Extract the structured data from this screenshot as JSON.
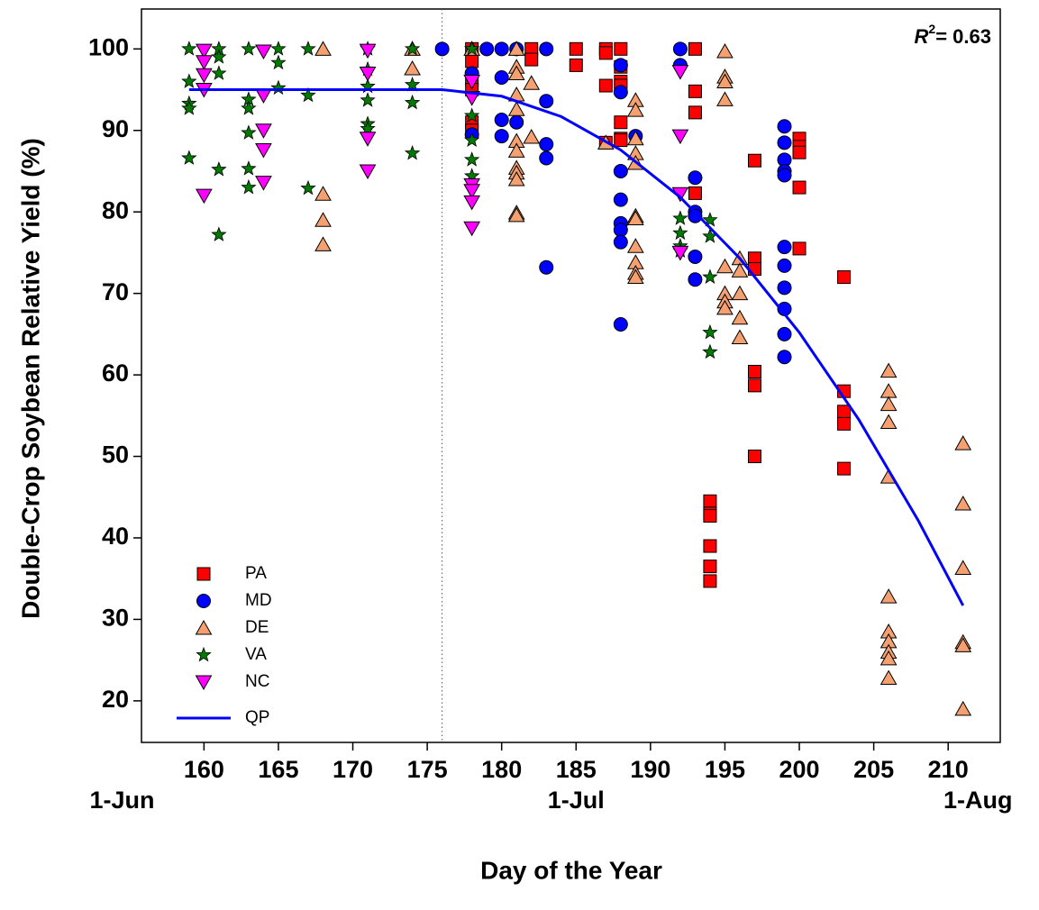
{
  "chart_data": {
    "type": "scatter",
    "xlabel": "Day of the Year",
    "ylabel": "Double-Crop Soybean Relative Yield (%)",
    "annotation": {
      "prefix": "R",
      "superscript": "2",
      "text": "= 0.63"
    },
    "xlim": [
      155.8,
      213.5
    ],
    "ylim": [
      14.9,
      104.9
    ],
    "xticks": [
      160,
      165,
      170,
      175,
      180,
      185,
      190,
      195,
      200,
      205,
      210
    ],
    "yticks": [
      20,
      30,
      40,
      50,
      60,
      70,
      80,
      90,
      100
    ],
    "date_labels": [
      {
        "value": 154.5,
        "label": "1-Jun"
      },
      {
        "value": 185,
        "label": "1-Jul"
      },
      {
        "value": 212,
        "label": "1-Aug"
      }
    ],
    "vline": 176,
    "legend": "lower left",
    "series": [
      {
        "name": "PA",
        "marker": "square",
        "color": "#ff0000",
        "x": [
          178,
          178,
          178,
          178,
          178,
          178,
          182,
          182,
          185,
          185,
          187,
          187,
          187,
          187,
          188,
          188,
          188,
          188,
          188,
          188,
          188,
          193,
          193,
          193,
          193,
          194,
          194,
          194,
          194,
          194,
          194,
          197,
          197,
          197,
          197,
          197,
          197,
          200,
          200,
          200,
          200,
          200,
          203,
          203,
          203,
          203,
          203
        ],
        "values": [
          100,
          98.5,
          96.3,
          95,
          91,
          90,
          100,
          98.7,
          100,
          98,
          100,
          99.5,
          95.5,
          88.5,
          100,
          97.8,
          96,
          95.5,
          91,
          89,
          88.8,
          100,
          94.8,
          92.2,
          82.3,
          44.5,
          43,
          42.7,
          39,
          36.5,
          34.7,
          86.3,
          74.3,
          73,
          60.4,
          58.7,
          50,
          89,
          88,
          87.3,
          83,
          75.5,
          72,
          58,
          55.5,
          54,
          48.5
        ]
      },
      {
        "name": "MD",
        "marker": "circle",
        "color": "#0000ff",
        "x": [
          176,
          178,
          178,
          179,
          180,
          180,
          180,
          180,
          181,
          181,
          183,
          183,
          183,
          183,
          183,
          188,
          188,
          188,
          188,
          188,
          188,
          188,
          188,
          189,
          192,
          192,
          193,
          193,
          193,
          193,
          193,
          199,
          199,
          199,
          199,
          199,
          199,
          199,
          199,
          199,
          199,
          199
        ],
        "values": [
          100,
          97,
          89.5,
          100,
          100,
          96.5,
          91.3,
          89.3,
          100,
          91,
          100,
          93.6,
          88.3,
          86.6,
          73.2,
          98,
          94.7,
          85,
          81.5,
          78.6,
          77.8,
          76.3,
          66.2,
          89.3,
          100,
          98,
          84.2,
          80,
          79.5,
          74.5,
          71.7,
          90.5,
          88.5,
          86.4,
          85,
          84.5,
          75.7,
          73.4,
          70.7,
          68.1,
          65,
          62.2
        ]
      },
      {
        "name": "DE",
        "marker": "triangle",
        "color": "#f4a070",
        "x": [
          168,
          168,
          168,
          168,
          174,
          174,
          178,
          181,
          181,
          181,
          181,
          181,
          181,
          181,
          181,
          181,
          181,
          181,
          181,
          182,
          182,
          187,
          189,
          189,
          189,
          189,
          189,
          189,
          189,
          189,
          189,
          189,
          189,
          195,
          195,
          195,
          195,
          195,
          195,
          195,
          195,
          196,
          196,
          196,
          196,
          196,
          206,
          206,
          206,
          206,
          206,
          206,
          206,
          206,
          206,
          206,
          206,
          211,
          211,
          211,
          211,
          211,
          211
        ],
        "values": [
          100,
          82.2,
          79,
          76,
          100,
          97.6,
          100,
          100,
          97.8,
          97,
          94.4,
          92.6,
          88.7,
          87.5,
          85.4,
          84.8,
          84,
          79.9,
          79.6,
          95.8,
          89.2,
          88.5,
          93.7,
          92.5,
          89,
          87.2,
          86,
          79.5,
          79.2,
          75.8,
          73.8,
          72.5,
          72,
          99.7,
          96.6,
          96,
          93.8,
          73.3,
          70,
          69,
          68.2,
          74.3,
          72.8,
          70,
          67,
          64.6,
          60.5,
          58,
          56.4,
          54.2,
          47.5,
          32.8,
          28.5,
          27.3,
          26,
          25.2,
          22.8,
          51.6,
          44.2,
          36.3,
          27.2,
          26.8,
          19
        ]
      },
      {
        "name": "VA",
        "marker": "star",
        "color": "#007a00",
        "x": [
          159,
          159,
          159,
          159,
          159,
          161,
          161,
          161,
          161,
          161,
          163,
          163,
          163,
          163,
          163,
          163,
          165,
          165,
          165,
          167,
          167,
          167,
          171,
          171,
          171,
          171,
          171,
          171,
          174,
          174,
          174,
          174,
          178,
          178,
          178,
          178,
          178,
          192,
          192,
          192,
          192,
          194,
          194,
          194,
          194,
          194
        ],
        "values": [
          100,
          96,
          93.3,
          92.7,
          86.6,
          100,
          99,
          97,
          85.2,
          77.2,
          100,
          93.8,
          92.7,
          89.7,
          85.3,
          83,
          100,
          98.3,
          95.2,
          100,
          94.3,
          82.9,
          100,
          97.5,
          95.4,
          93.7,
          90.8,
          90.2,
          100,
          95.6,
          93.4,
          87.2,
          100,
          91.8,
          88.8,
          86.4,
          84.4,
          79.2,
          77.4,
          75.8,
          75.2,
          79,
          77,
          72,
          65.2,
          62.8
        ]
      },
      {
        "name": "NC",
        "marker": "triangle-down",
        "color": "#ff00ff",
        "x": [
          160,
          160,
          160,
          160,
          160,
          164,
          164,
          164,
          164,
          164,
          171,
          171,
          171,
          171,
          178,
          178,
          178,
          178,
          178,
          178,
          192,
          192,
          192,
          192
        ],
        "values": [
          99.8,
          98.4,
          96.8,
          95,
          82,
          99.7,
          94.3,
          90,
          87.6,
          83.6,
          99.8,
          97,
          89,
          85,
          96,
          94,
          83.3,
          82.6,
          81.2,
          78,
          97.2,
          89.3,
          82.2,
          75
        ]
      },
      {
        "name": "QP",
        "marker": "line",
        "color": "#0000ff",
        "x": [
          159,
          176,
          180,
          184,
          188,
          192,
          196,
          200,
          204,
          208,
          211
        ],
        "values": [
          95,
          95,
          94.2,
          91.7,
          87.6,
          81.8,
          74.3,
          65.2,
          54.5,
          42.1,
          31.7
        ]
      }
    ]
  }
}
